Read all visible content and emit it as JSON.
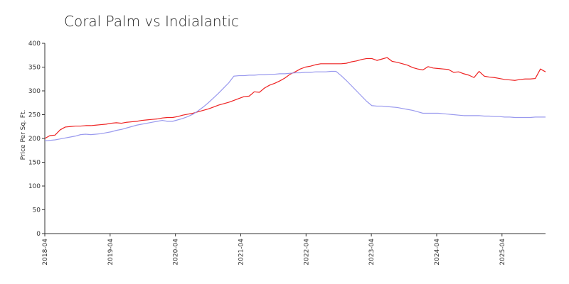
{
  "chart_data": {
    "type": "line",
    "title": "Coral Palm vs Indialantic",
    "xlabel": "",
    "ylabel": "Price Per Sq. Ft.",
    "ylim": [
      0,
      400
    ],
    "yticks": [
      0,
      50,
      100,
      150,
      200,
      250,
      300,
      350,
      400
    ],
    "xticks": [
      "2018-04",
      "2019-04",
      "2020-04",
      "2021-04",
      "2022-04",
      "2023-04",
      "2024-04",
      "2025-04"
    ],
    "x_start": "2018-04",
    "x_end": "2025-12",
    "grid": false,
    "legend": "none",
    "series": [
      {
        "color": "#ee2222",
        "values": [
          200,
          206,
          207,
          218,
          224,
          225,
          226,
          226,
          227,
          227,
          228,
          229,
          230,
          232,
          233,
          232,
          234,
          235,
          236,
          238,
          239,
          240,
          241,
          243,
          244,
          244,
          246,
          249,
          251,
          253,
          256,
          259,
          262,
          266,
          270,
          273,
          276,
          280,
          284,
          288,
          289,
          298,
          297,
          306,
          312,
          316,
          321,
          327,
          335,
          340,
          346,
          350,
          352,
          355,
          357,
          357,
          357,
          357,
          357,
          358,
          361,
          363,
          366,
          368,
          368,
          364,
          367,
          370,
          362,
          360,
          357,
          354,
          349,
          346,
          344,
          351,
          348,
          347,
          346,
          345,
          339,
          340,
          336,
          333,
          328,
          341,
          331,
          329,
          328,
          326,
          324,
          323,
          322,
          324,
          325,
          325,
          326,
          346,
          340
        ]
      },
      {
        "color": "#9999ee",
        "values": [
          195,
          196,
          197,
          199,
          201,
          203,
          205,
          208,
          209,
          208,
          209,
          210,
          212,
          214,
          217,
          219,
          222,
          225,
          228,
          230,
          232,
          234,
          236,
          238,
          236,
          236,
          239,
          242,
          246,
          251,
          258,
          266,
          275,
          285,
          295,
          306,
          317,
          331,
          332,
          332,
          333,
          333,
          334,
          334,
          335,
          335,
          336,
          336,
          337,
          338,
          338,
          339,
          339,
          340,
          340,
          340,
          341,
          341,
          332,
          322,
          311,
          300,
          289,
          278,
          269,
          268,
          268,
          267,
          266,
          265,
          263,
          261,
          259,
          256,
          253,
          253,
          253,
          253,
          252,
          251,
          250,
          249,
          248,
          248,
          248,
          248,
          247,
          247,
          246,
          246,
          245,
          245,
          244,
          244,
          244,
          244,
          245,
          245,
          245
        ]
      }
    ]
  }
}
